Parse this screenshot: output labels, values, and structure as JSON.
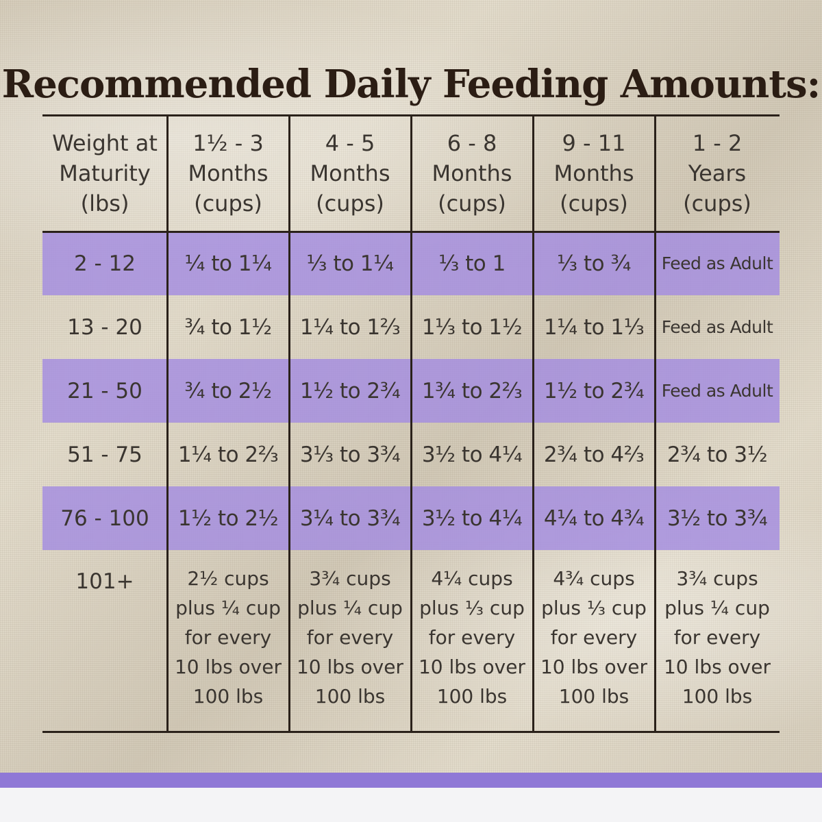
{
  "title": "Recommended Daily Feeding Amounts:",
  "colors": {
    "band": "#a48ce1",
    "accent_bar": "#8f78d6",
    "title_text": "#2b1d14",
    "body_text": "#3a3530",
    "rule": "#2a211a"
  },
  "table": {
    "headers": [
      "Weight at Maturity (lbs)",
      "1½ - 3 Months (cups)",
      "4 - 5 Months (cups)",
      "6 - 8 Months (cups)",
      "9 - 11 Months (cups)",
      "1 - 2 Years (cups)"
    ],
    "rows": [
      {
        "weight": "2 - 12",
        "cells": [
          "¼ to 1¼",
          "⅓ to 1¼",
          "⅓ to 1",
          "⅓ to ¾",
          "Feed as Adult"
        ]
      },
      {
        "weight": "13 - 20",
        "cells": [
          "¾ to 1½",
          "1¼ to 1⅔",
          "1⅓ to 1½",
          "1¼ to 1⅓",
          "Feed as Adult"
        ]
      },
      {
        "weight": "21 - 50",
        "cells": [
          "¾ to 2½",
          "1½ to 2¾",
          "1¾ to 2⅔",
          "1½ to 2¾",
          "Feed as Adult"
        ]
      },
      {
        "weight": "51 - 75",
        "cells": [
          "1¼ to 2⅔",
          "3⅓ to 3¾",
          "3½ to 4¼",
          "2¾ to 4⅔",
          "2¾ to 3½"
        ]
      },
      {
        "weight": "76 - 100",
        "cells": [
          "1½ to 2½",
          "3¼ to 3¾",
          "3½ to 4¼",
          "4¼ to 4¾",
          "3½ to 3¾"
        ]
      },
      {
        "weight": "101+",
        "cells": [
          "2½ cups plus ¼ cup for every 10 lbs over 100 lbs",
          "3¾ cups plus ¼ cup for every 10 lbs over 100 lbs",
          "4¼ cups plus ⅓ cup for every 10 lbs over 100 lbs",
          "4¾ cups plus ⅓ cup for every 10 lbs over 100 lbs",
          "3¾ cups plus ¼ cup for every 10 lbs over 100 lbs"
        ]
      }
    ],
    "header_lines": [
      [
        "Weight at",
        "Maturity",
        "(lbs)"
      ],
      [
        "1½ - 3",
        "Months",
        "(cups)"
      ],
      [
        "4 - 5",
        "Months",
        "(cups)"
      ],
      [
        "6 - 8",
        "Months",
        "(cups)"
      ],
      [
        "9 - 11",
        "Months",
        "(cups)"
      ],
      [
        "1 - 2",
        "Years",
        "(cups)"
      ]
    ],
    "last_row_lines": [
      [
        "2½ cups",
        "plus ¼ cup",
        "for every",
        "10 lbs over",
        "100 lbs"
      ],
      [
        "3¾ cups",
        "plus ¼ cup",
        "for every",
        "10 lbs over",
        "100 lbs"
      ],
      [
        "4¼ cups",
        "plus ⅓ cup",
        "for every",
        "10 lbs over",
        "100 lbs"
      ],
      [
        "4¾ cups",
        "plus ⅓ cup",
        "for every",
        "10 lbs over",
        "100 lbs"
      ],
      [
        "3¾ cups",
        "plus ¼ cup",
        "for every",
        "10 lbs over",
        "100 lbs"
      ]
    ]
  }
}
